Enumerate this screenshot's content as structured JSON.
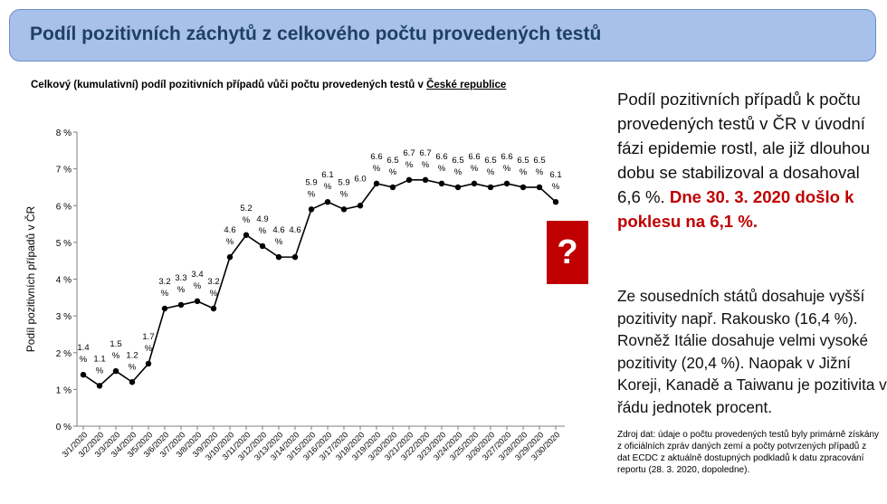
{
  "header": {
    "title": "Podíl pozitivních záchytů z celkového počtu provedených testů"
  },
  "chart_title": {
    "prefix": "Celkový (kumulativní) podíl pozitivních případů vůči počtu provedených testů v ",
    "underlined": "České republice"
  },
  "chart_data": {
    "type": "line",
    "ylabel": "Podíl pozitivních případů v ČR",
    "ylim": [
      0,
      8
    ],
    "yticks": [
      "0 %",
      "1 %",
      "2 %",
      "3 %",
      "4 %",
      "5 %",
      "6 %",
      "7 %",
      "8 %"
    ],
    "categories": [
      "3/1/2020",
      "3/2/2020",
      "3/3/2020",
      "3/4/2020",
      "3/5/2020",
      "3/6/2020",
      "3/7/2020",
      "3/8/2020",
      "3/9/2020",
      "3/10/2020",
      "3/11/2020",
      "3/12/2020",
      "3/13/2020",
      "3/14/2020",
      "3/15/2020",
      "3/16/2020",
      "3/17/2020",
      "3/18/2020",
      "3/19/2020",
      "3/20/2020",
      "3/21/2020",
      "3/22/2020",
      "3/23/2020",
      "3/24/2020",
      "3/25/2020",
      "3/26/2020",
      "3/27/2020",
      "3/28/2020",
      "3/29/2020",
      "3/30/2020"
    ],
    "values": [
      1.4,
      1.1,
      1.5,
      1.2,
      1.7,
      3.2,
      3.3,
      3.4,
      3.2,
      4.6,
      5.2,
      4.9,
      4.6,
      4.6,
      5.9,
      6.1,
      5.9,
      6.0,
      6.6,
      6.5,
      6.7,
      6.7,
      6.6,
      6.5,
      6.6,
      6.5,
      6.6,
      6.5,
      6.5,
      6.1
    ],
    "data_labels": [
      "1.4 %",
      "1.1 %",
      "1.5 %",
      "1.2 %",
      "1.7 %",
      "3.2 %",
      "3.3 %",
      "3.4 %",
      "3.2 %",
      "4.6 %",
      "5.2 %",
      "4.9 %",
      "4.6 %",
      "4.6",
      "5.9 %",
      "6.1 %",
      "5.9 %",
      "6.0",
      "6.6 %",
      "6.5 %",
      "6.7 %",
      "6.7 %",
      "6.6 %",
      "6.5 %",
      "6.6 %",
      "6.5 %",
      "6.6 %",
      "6.5 %",
      "6.5 %",
      "6.1 %"
    ],
    "line_color": "#000000",
    "grid": false
  },
  "question_mark": "?",
  "right_paragraph1": {
    "normal": "Podíl pozitivních případů k počtu provedených testů v ČR v úvodní fázi epidemie rostl, ale již dlouhou dobu se stabilizoval a dosahoval 6,6 %. ",
    "highlight": "Dne 30. 3. 2020 došlo k poklesu na 6,1 %."
  },
  "right_paragraph2": "Ze sousedních států dosahuje vyšší pozitivity např. Rakousko (16,4 %). Rovněž Itálie dosahuje velmi vysoké pozitivity (20,4 %). Naopak v Jižní Koreji, Kanadě a Taiwanu je pozitivita v řádu jednotek procent.",
  "source_note": "Zdroj dat: údaje o počtu provedených testů byly primárně získány z oficiálních zpráv daných zemí a počty potvrzených případů z dat ECDC z aktuálně dostupných podkladů k datu zpracování reportu (28. 3. 2020, dopoledne).",
  "colors": {
    "header_bg": "#a7c1ea",
    "header_text": "#1f3f66",
    "accent_red": "#c00000"
  }
}
